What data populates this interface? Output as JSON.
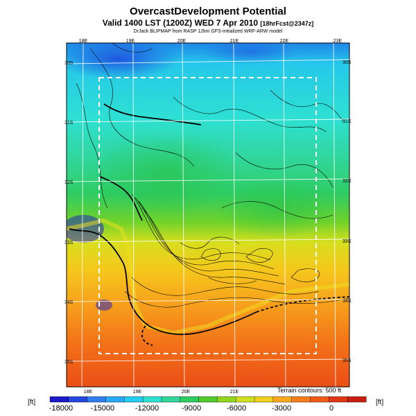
{
  "title": "OvercastDevelopment Potential",
  "subtitle": "Valid 1400 LST (1200Z) WED 7 Apr 2010",
  "subtitle_small": "[18hrFcst@2347z]",
  "credit": "DrJack BLIPMAP from RASP 12km GFS-initialized WRF-ARW model",
  "lon_labels_top": [
    "18E",
    "19E",
    "20E",
    "21E",
    "22E",
    "23E"
  ],
  "lon_labels_bottom": [
    "18E",
    "19E",
    "20E",
    "21E"
  ],
  "lat_labels_left": [
    "30S",
    "31S",
    "32S",
    "33S",
    "34S",
    "35S"
  ],
  "lat_labels_right": [
    "30S",
    "31S",
    "32S",
    "33S",
    "34S",
    "35S"
  ],
  "terrain_note": "Terrain contours: 500 ft",
  "units_left": "[ft]",
  "units_right": "[ft]",
  "colorbar": {
    "labels": [
      "-18000",
      "-15000",
      "-12000",
      "-9000",
      "-6000",
      "-3000",
      "0"
    ],
    "colors": [
      "#1a1ac8",
      "#2648e0",
      "#2f7df0",
      "#28a8f5",
      "#22cdf0",
      "#2ee0d2",
      "#30d69a",
      "#2fcc62",
      "#4fcc2c",
      "#92d61e",
      "#cfe01e",
      "#f2d21e",
      "#f7a81c",
      "#f57e1a",
      "#ef5a18",
      "#e03814",
      "#c81e12"
    ]
  }
}
